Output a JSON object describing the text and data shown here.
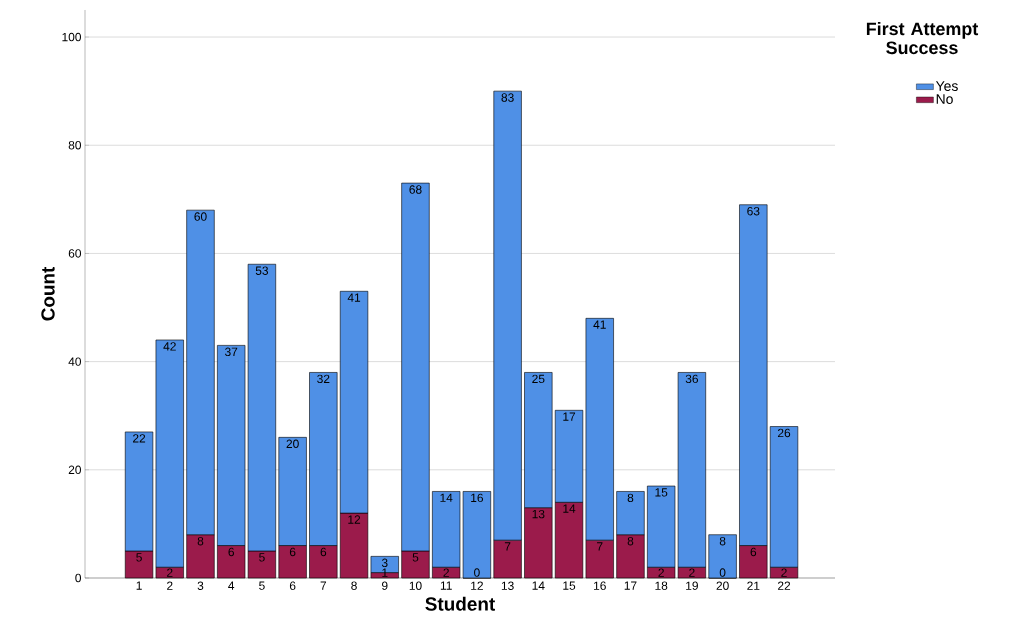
{
  "chart_data": {
    "type": "bar",
    "stacked": true,
    "xlabel": "Student",
    "ylabel": "Count",
    "legend_title": "First Attempt Success",
    "categories": [
      "1",
      "2",
      "3",
      "4",
      "5",
      "6",
      "7",
      "8",
      "9",
      "10",
      "11",
      "12",
      "13",
      "14",
      "15",
      "16",
      "17",
      "18",
      "19",
      "20",
      "21",
      "22"
    ],
    "series": [
      {
        "name": "No",
        "color": "#9b1b4b",
        "values": [
          5,
          2,
          8,
          6,
          5,
          6,
          6,
          12,
          1,
          5,
          2,
          0,
          7,
          13,
          14,
          7,
          8,
          2,
          2,
          0,
          6,
          2
        ],
        "value_labels": [
          "5",
          "2",
          "8",
          "6",
          "5",
          "6",
          "6",
          "12",
          "1",
          "5",
          "2",
          null,
          "7",
          "13",
          "14",
          "7",
          "8",
          "2",
          "2",
          "0",
          "6",
          "2"
        ]
      },
      {
        "name": "Yes",
        "color": "#4f90e6",
        "values": [
          22,
          42,
          60,
          37,
          53,
          20,
          32,
          41,
          3,
          68,
          14,
          16,
          83,
          25,
          17,
          41,
          8,
          15,
          36,
          8,
          63,
          26
        ],
        "value_labels": [
          "22",
          "42",
          "60",
          "37",
          "53",
          "20",
          "32",
          "41",
          "3",
          "68",
          "14",
          "16",
          "83",
          "25",
          "17",
          "41",
          "8",
          "15",
          "36",
          "8",
          "63",
          "26"
        ]
      }
    ],
    "annotations": [
      {
        "text": "0",
        "x": "12",
        "y": 0
      }
    ],
    "ylim": [
      0,
      105
    ],
    "yticks": [
      0,
      20,
      40,
      60,
      80,
      100
    ],
    "grid": "y",
    "legend": "top right"
  }
}
